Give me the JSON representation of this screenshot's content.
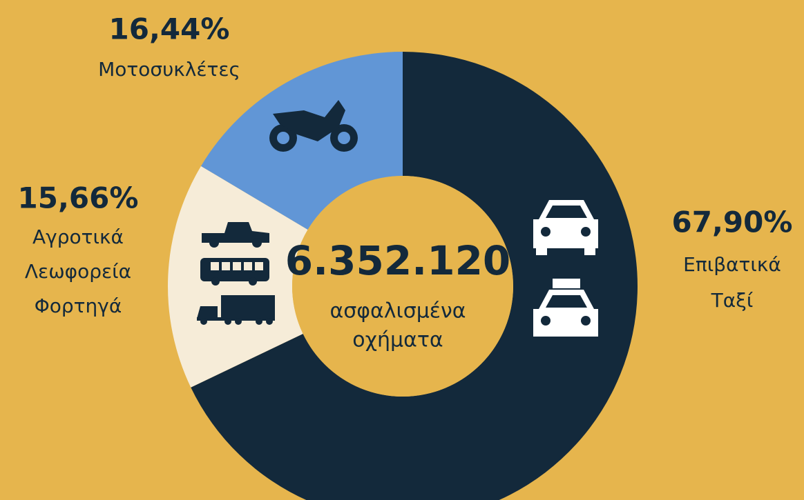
{
  "chart_data": {
    "type": "donut",
    "categories": [
      [
        "Επιβατικά",
        "Ταξί"
      ],
      [
        "Αγροτικά",
        "Λεωφορεία",
        "Φορτηγά"
      ],
      [
        "Μοτοσυκλέτες"
      ]
    ],
    "values": [
      67.9,
      15.66,
      16.44
    ],
    "value_labels": [
      "67,90%",
      "15,66%",
      "16,44%"
    ],
    "colors": [
      "#13293b",
      "#f6ecd8",
      "#6196d6"
    ],
    "center_label": "6.352.120",
    "center_sublabel": [
      "ασφαλισμένα",
      "οχήματα"
    ]
  }
}
